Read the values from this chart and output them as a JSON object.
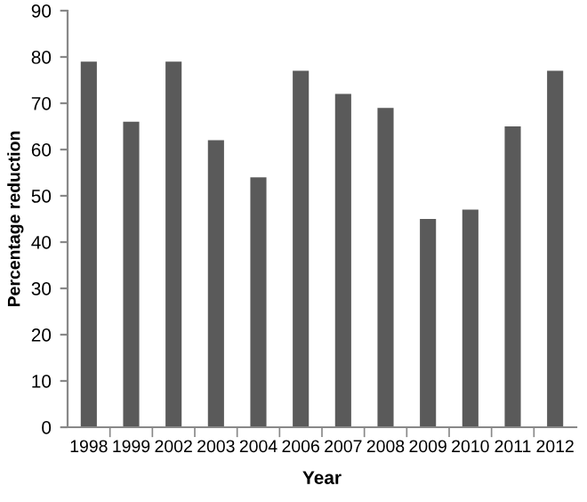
{
  "chart_data": {
    "type": "bar",
    "xlabel": "Year",
    "ylabel": "Percentage reduction",
    "categories": [
      "1998",
      "1999",
      "2002",
      "2003",
      "2004",
      "2006",
      "2007",
      "2008",
      "2009",
      "2010",
      "2011",
      "2012"
    ],
    "values": [
      79,
      66,
      79,
      62,
      54,
      77,
      72,
      69,
      45,
      47,
      65,
      77
    ],
    "color": "#5a5a5a",
    "ylim": [
      0,
      90
    ],
    "yticks": [
      0,
      10,
      20,
      30,
      40,
      50,
      60,
      70,
      80,
      90
    ],
    "grid": false
  }
}
